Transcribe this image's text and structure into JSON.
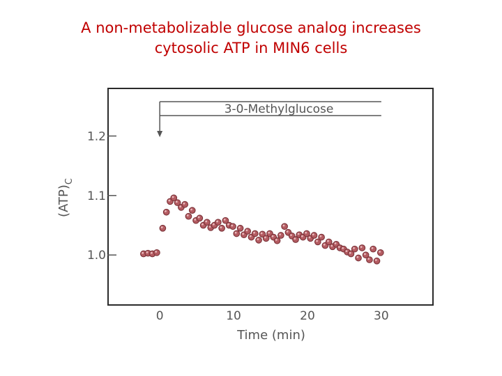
{
  "slide": {
    "title_line1": "A non-metabolizable glucose analog increases",
    "title_line2": "cytosolic ATP in MIN6 cells"
  },
  "chart_data": {
    "type": "scatter",
    "xlabel": "Time (min)",
    "ylabel": "(ATP)",
    "ylabel_subscript": "C",
    "xlim": [
      -7,
      37
    ],
    "ylim": [
      0.916,
      1.28
    ],
    "x_ticks": [
      0,
      10,
      20,
      30
    ],
    "x_tick_labels": [
      "0",
      "10",
      "20",
      "30"
    ],
    "y_ticks": [
      1.0,
      1.1,
      1.2
    ],
    "y_tick_labels": [
      "1.0",
      "1.1",
      "1.2"
    ],
    "grid": false,
    "annotation": {
      "label": "3-0-Methylglucose",
      "start_x": 0,
      "end_x": 30
    },
    "marker_color": "#b45c62",
    "x": [
      -2.2,
      -1.6,
      -1.0,
      -0.4,
      0.4,
      0.9,
      1.4,
      1.9,
      2.4,
      2.9,
      3.4,
      3.9,
      4.4,
      4.9,
      5.4,
      5.9,
      6.4,
      6.9,
      7.4,
      7.9,
      8.4,
      8.9,
      9.4,
      9.9,
      10.4,
      10.9,
      11.4,
      11.9,
      12.4,
      12.9,
      13.4,
      13.9,
      14.4,
      14.9,
      15.4,
      15.9,
      16.4,
      16.9,
      17.4,
      17.9,
      18.4,
      18.9,
      19.4,
      19.9,
      20.4,
      20.9,
      21.4,
      21.9,
      22.4,
      22.9,
      23.4,
      23.9,
      24.4,
      24.9,
      25.4,
      25.9,
      26.4,
      26.9,
      27.4,
      27.9,
      28.4,
      28.9,
      29.4,
      29.9
    ],
    "y": [
      1.002,
      1.003,
      1.002,
      1.004,
      1.045,
      1.072,
      1.09,
      1.096,
      1.088,
      1.08,
      1.085,
      1.065,
      1.075,
      1.058,
      1.062,
      1.05,
      1.055,
      1.046,
      1.05,
      1.055,
      1.045,
      1.058,
      1.05,
      1.048,
      1.036,
      1.045,
      1.034,
      1.04,
      1.03,
      1.036,
      1.025,
      1.035,
      1.028,
      1.036,
      1.03,
      1.024,
      1.033,
      1.048,
      1.038,
      1.032,
      1.026,
      1.034,
      1.03,
      1.036,
      1.028,
      1.033,
      1.022,
      1.03,
      1.016,
      1.022,
      1.014,
      1.018,
      1.012,
      1.01,
      1.005,
      1.002,
      1.01,
      0.995,
      1.012,
      1.0,
      0.992,
      1.01,
      0.99,
      1.004
    ]
  }
}
